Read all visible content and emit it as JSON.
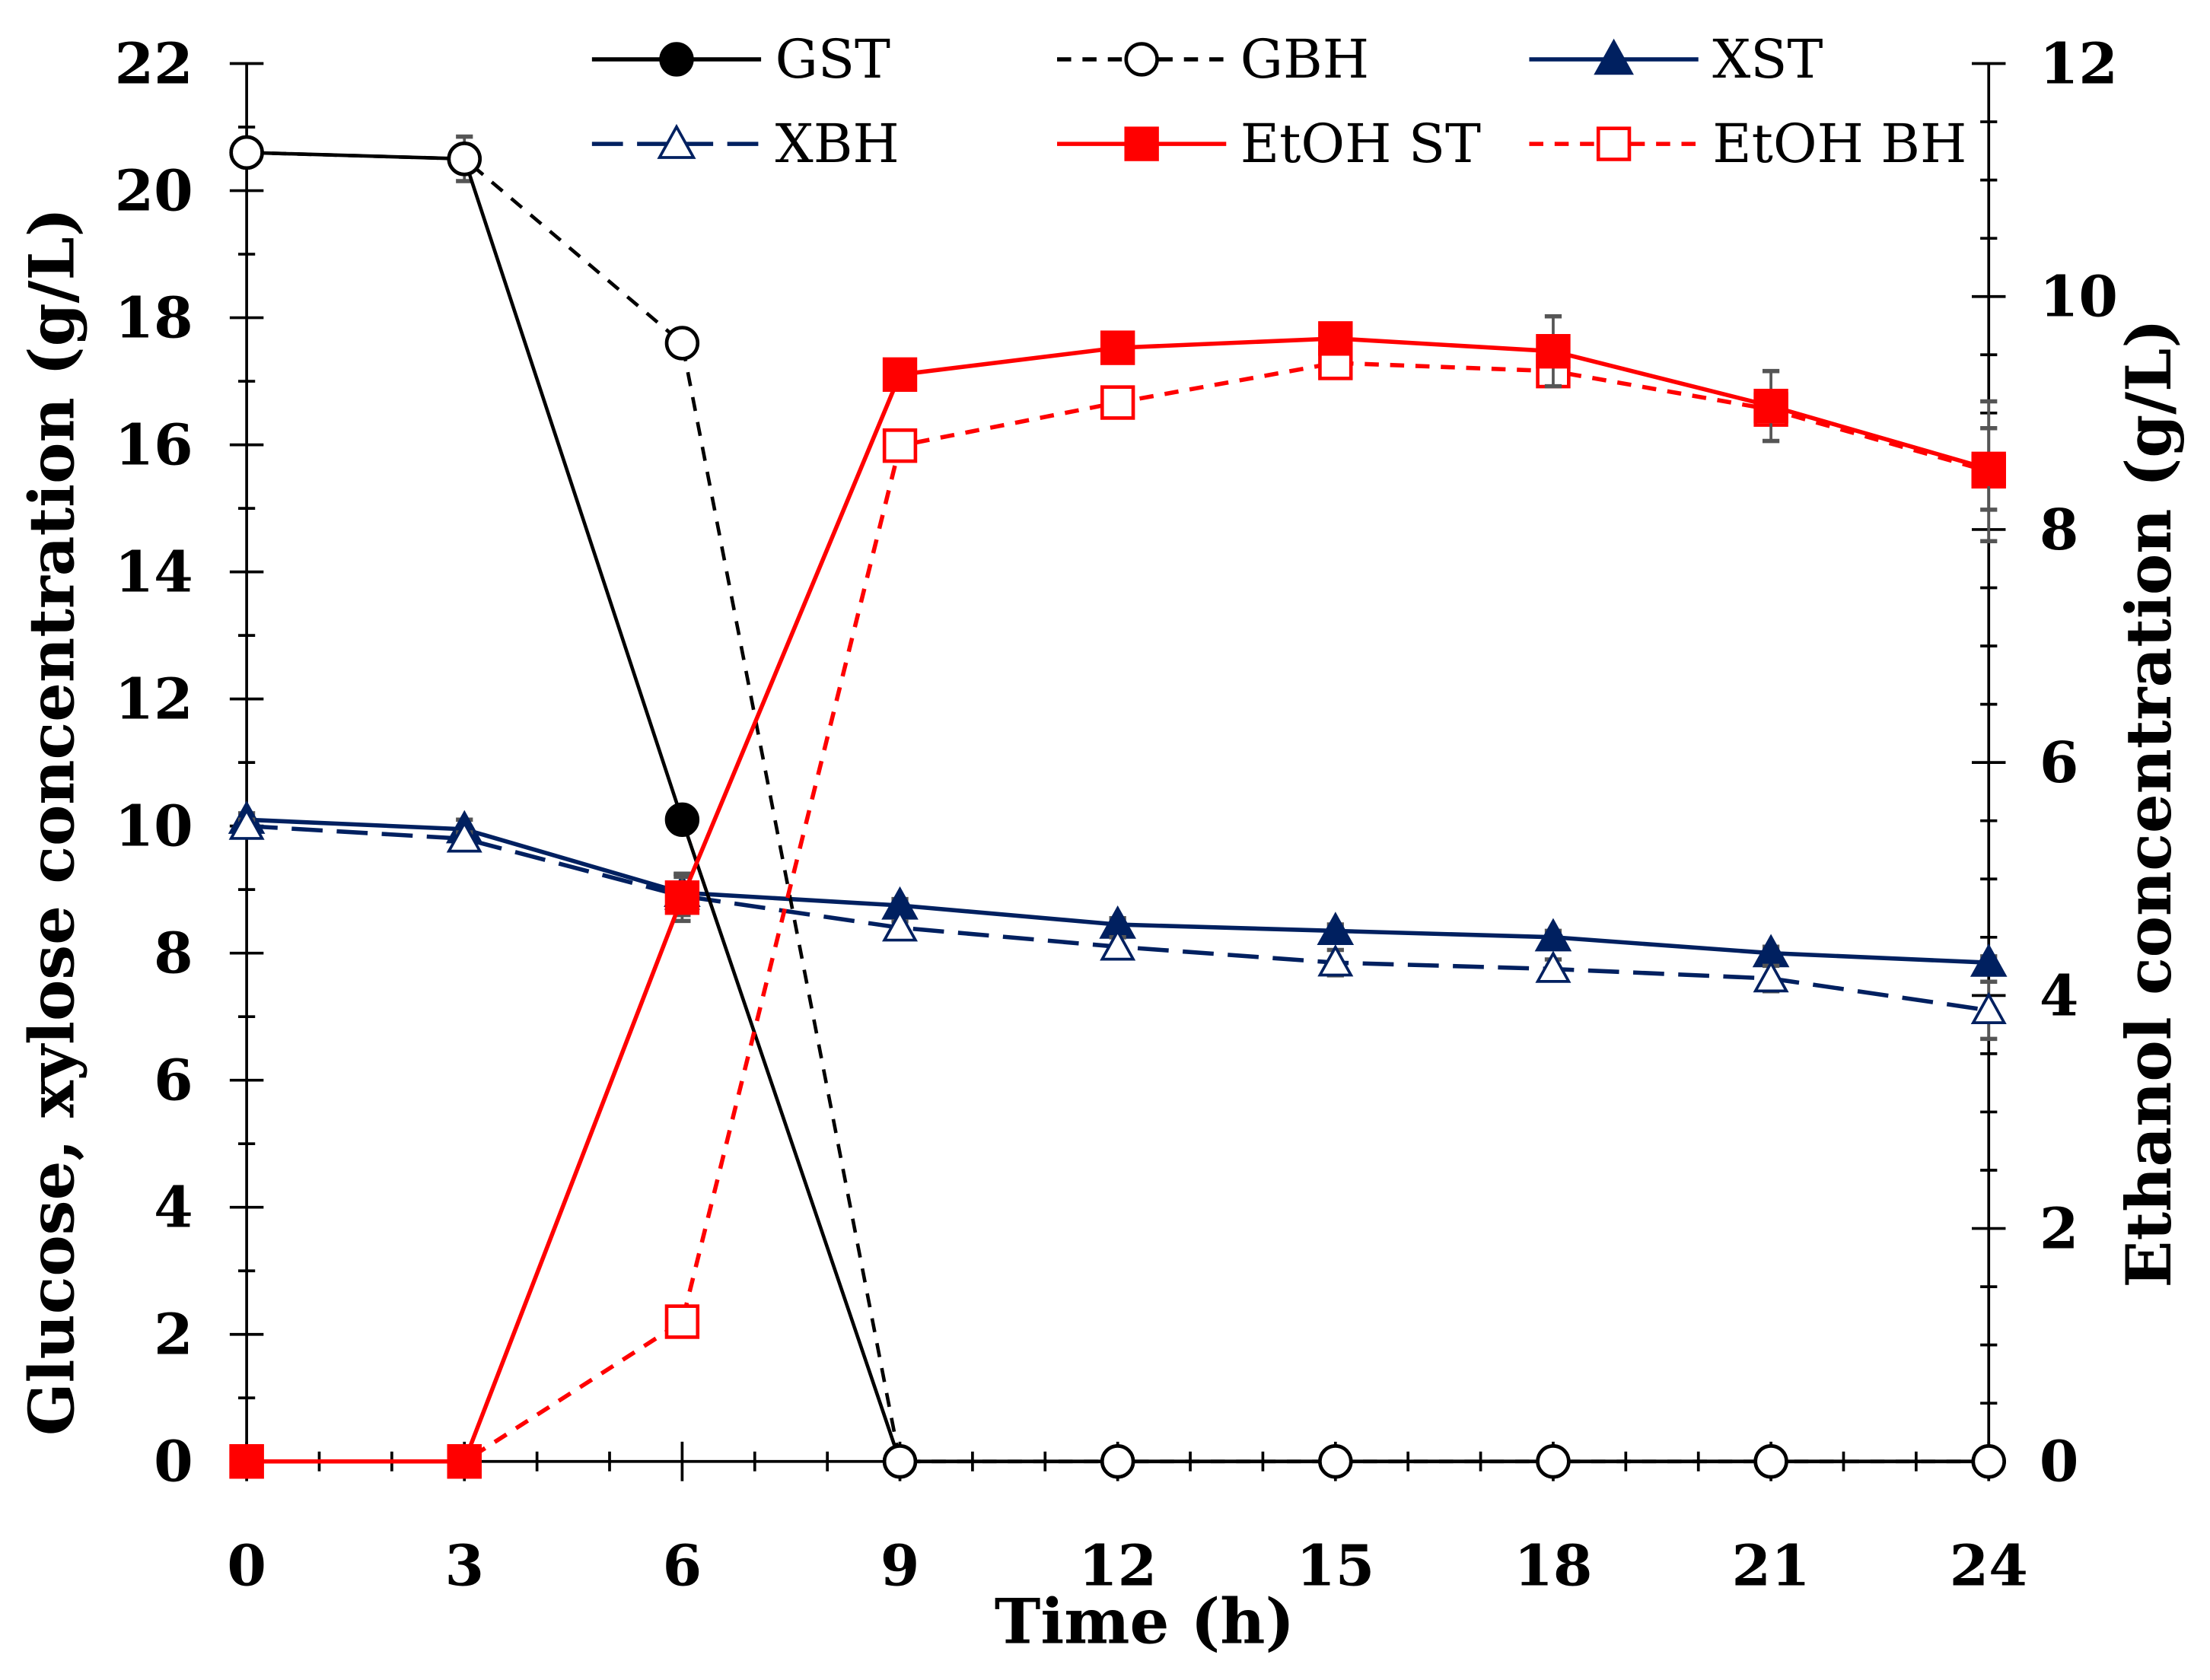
{
  "chart_data": {
    "type": "line",
    "title": "",
    "xlabel": "Time (h)",
    "ylabel": "Glucose, xylose concentration (g/L)",
    "y2label": "Ethanol concentration (g/L)",
    "x": [
      0,
      3,
      6,
      9,
      12,
      15,
      18,
      21,
      24
    ],
    "xlim": [
      0,
      24
    ],
    "ylim": [
      0,
      22
    ],
    "y2lim": [
      0,
      12
    ],
    "xticks": [
      "0",
      "3",
      "6",
      "9",
      "12",
      "15",
      "18",
      "21",
      "24"
    ],
    "yticks": [
      "0",
      "2",
      "4",
      "6",
      "8",
      "10",
      "12",
      "14",
      "16",
      "18",
      "20",
      "22"
    ],
    "y2ticks": [
      "0",
      "2",
      "4",
      "6",
      "8",
      "10",
      "12"
    ],
    "grid": false,
    "legend_position": "top",
    "series": [
      {
        "name": "GST",
        "axis": "left",
        "color": "#000000",
        "dash": false,
        "marker": "circle",
        "filled": true,
        "values": [
          20.6,
          20.5,
          10.1,
          0,
          0,
          0,
          0,
          0,
          0
        ],
        "errors": [
          0.15,
          0.35,
          0.1,
          0,
          0,
          0,
          0,
          0,
          0
        ]
      },
      {
        "name": "GBH",
        "axis": "left",
        "color": "#000000",
        "dash": true,
        "marker": "circle",
        "filled": false,
        "values": [
          20.6,
          20.5,
          17.6,
          0,
          0,
          0,
          0,
          0,
          0
        ],
        "errors": [
          0.1,
          0.2,
          0.2,
          0,
          0,
          0,
          0,
          0,
          0
        ]
      },
      {
        "name": "XST",
        "axis": "left",
        "color": "#002060",
        "dash": false,
        "marker": "triangle",
        "filled": true,
        "values": [
          10.1,
          9.95,
          8.95,
          8.75,
          8.45,
          8.35,
          8.25,
          8.0,
          7.85
        ],
        "errors": [
          0.1,
          0.15,
          0.3,
          0.1,
          0.1,
          0.1,
          0.1,
          0.1,
          0.1
        ]
      },
      {
        "name": "XBH",
        "axis": "left",
        "color": "#002060",
        "dash": true,
        "marker": "triangle",
        "filled": false,
        "values": [
          10.0,
          9.8,
          8.9,
          8.4,
          8.1,
          7.85,
          7.75,
          7.6,
          7.1
        ],
        "errors": [
          0.1,
          0.1,
          0.3,
          0.1,
          0.15,
          0.2,
          0.15,
          0.2,
          0.45
        ]
      },
      {
        "name": "EtOH ST",
        "axis": "right",
        "color": "#FF0000",
        "dash": false,
        "marker": "square",
        "filled": true,
        "values": [
          0,
          0,
          4.84,
          9.33,
          9.56,
          9.64,
          9.53,
          9.06,
          8.52
        ],
        "errors": [
          0,
          0,
          0.2,
          0.05,
          0.05,
          0.07,
          0.3,
          0.3,
          0.35
        ]
      },
      {
        "name": "EtOH BH",
        "axis": "right",
        "color": "#FF0000",
        "dash": true,
        "marker": "square",
        "filled": false,
        "values": [
          0,
          0,
          1.2,
          8.72,
          9.09,
          9.43,
          9.36,
          9.03,
          8.5
        ],
        "errors": [
          0,
          0,
          0.1,
          0.05,
          0.1,
          0.05,
          0.1,
          0.1,
          0.6
        ]
      }
    ]
  }
}
